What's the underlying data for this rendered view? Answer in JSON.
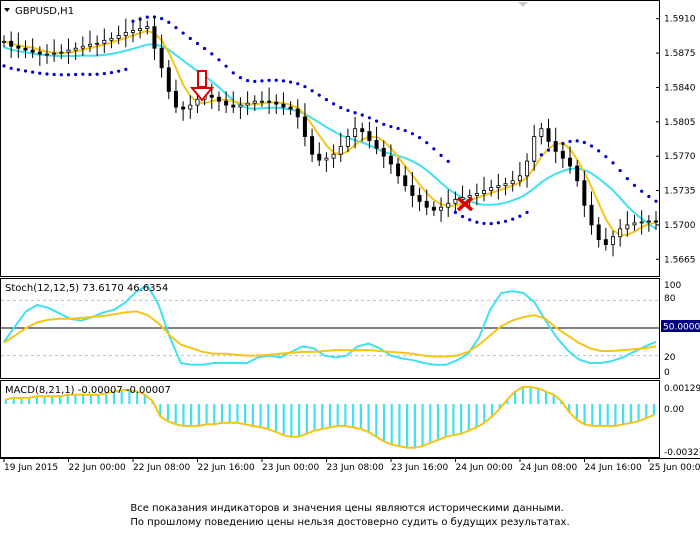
{
  "main_panel": {
    "title": "GBPUSD,H1",
    "price_ticks": [
      "1.5910",
      "1.5875",
      "1.5840",
      "1.5805",
      "1.5770",
      "1.5735",
      "1.5700",
      "1.5665"
    ]
  },
  "stoch_panel": {
    "label": "Stoch(12,12,5) 73.6170 46.6354",
    "ticks": [
      "100",
      "80",
      "20",
      "0"
    ],
    "level_badge": "50.0000"
  },
  "macd_panel": {
    "label": "MACD(8,21,1) -0.00007 -0.00007",
    "ticks": [
      "0.00129",
      "0.00",
      "-0.00327"
    ]
  },
  "time_axis": [
    "19 Jun 2015",
    "22 Jun 00:00",
    "22 Jun 08:00",
    "22 Jun 16:00",
    "23 Jun 00:00",
    "23 Jun 08:00",
    "23 Jun 16:00",
    "24 Jun 00:00",
    "24 Jun 08:00",
    "24 Jun 16:00",
    "25 Jun 00:00"
  ],
  "disclaimer": {
    "line1": "Все показания индикаторов и значения цены являются историческими данными.",
    "line2": "По прошлому поведению цены нельзя достоверно судить о будущих результатах."
  },
  "colors": {
    "bull_candle": "#ffffff",
    "bear_candle": "#000000",
    "ma_fast": "#f5c518",
    "ma_slow": "#40e0f0",
    "parabolic_sar": "#0000cc",
    "buy_arrow": "#dd0000",
    "exit_cross": "#dd0000"
  },
  "chart_data": [
    {
      "type": "candlestick",
      "symbol": "GBPUSD",
      "timeframe": "H1",
      "ylim": [
        1.565,
        1.5925
      ],
      "ticks": [
        1.591,
        1.5875,
        1.584,
        1.5805,
        1.577,
        1.5735,
        1.57,
        1.5665
      ],
      "x_labels": [
        "19 Jun 2015",
        "22 Jun 00:00",
        "22 Jun 08:00",
        "22 Jun 16:00",
        "23 Jun 00:00",
        "23 Jun 08:00",
        "23 Jun 16:00",
        "24 Jun 00:00",
        "24 Jun 08:00",
        "24 Jun 16:00",
        "25 Jun 00:00"
      ],
      "close_path": [
        1.5887,
        1.5882,
        1.588,
        1.5878,
        1.5876,
        1.5874,
        1.5874,
        1.5875,
        1.5876,
        1.5878,
        1.588,
        1.5882,
        1.5884,
        1.5885,
        1.5888,
        1.589,
        1.5893,
        1.5896,
        1.5898,
        1.59,
        1.5902,
        1.588,
        1.586,
        1.5836,
        1.582,
        1.5818,
        1.5822,
        1.5828,
        1.5832,
        1.583,
        1.5826,
        1.5822,
        1.582,
        1.5822,
        1.5824,
        1.5826,
        1.5826,
        1.5825,
        1.5823,
        1.582,
        1.5818,
        1.581,
        1.579,
        1.5772,
        1.5766,
        1.5768,
        1.5772,
        1.578,
        1.579,
        1.5798,
        1.5795,
        1.5786,
        1.5778,
        1.577,
        1.5762,
        1.575,
        1.574,
        1.573,
        1.5724,
        1.5718,
        1.5715,
        1.5718,
        1.5722,
        1.5726,
        1.5728,
        1.573,
        1.5732,
        1.5735,
        1.5738,
        1.574,
        1.5742,
        1.5745,
        1.575,
        1.5765,
        1.579,
        1.5798,
        1.5785,
        1.5775,
        1.5768,
        1.576,
        1.5745,
        1.572,
        1.57,
        1.5685,
        1.568,
        1.5688,
        1.5696,
        1.57,
        1.5702,
        1.5703,
        1.5704,
        1.5703
      ],
      "indicators": [
        "Moving Average (yellow)",
        "Moving Average (cyan)",
        "Parabolic SAR"
      ]
    },
    {
      "type": "line",
      "name": "Stochastic",
      "params": "12,12,5",
      "main_value": 73.617,
      "signal_value": 46.6354,
      "ylim": [
        0,
        100
      ],
      "ticks": [
        100,
        80,
        20,
        0
      ],
      "levels": [
        80,
        50,
        20
      ],
      "series": [
        {
          "color": "#40e0f0",
          "values": [
            35,
            52,
            68,
            75,
            72,
            66,
            60,
            58,
            62,
            67,
            70,
            78,
            90,
            96,
            75,
            40,
            12,
            10,
            10,
            12,
            12,
            12,
            12,
            18,
            20,
            18,
            24,
            30,
            28,
            20,
            18,
            20,
            30,
            33,
            28,
            20,
            17,
            15,
            12,
            10,
            10,
            15,
            22,
            40,
            70,
            88,
            90,
            88,
            78,
            58,
            40,
            26,
            16,
            12,
            12,
            14,
            18,
            24,
            30,
            35
          ]
        },
        {
          "color": "#f5c518",
          "values": [
            34,
            42,
            50,
            56,
            59,
            60,
            60,
            61,
            62,
            63,
            65,
            67,
            68,
            64,
            55,
            42,
            32,
            28,
            24,
            22,
            22,
            21,
            20,
            20,
            21,
            22,
            23,
            24,
            24,
            25,
            26,
            26,
            26,
            26,
            25,
            24,
            23,
            22,
            20,
            19,
            19,
            20,
            24,
            32,
            42,
            52,
            58,
            62,
            64,
            60,
            50,
            42,
            34,
            28,
            25,
            25,
            26,
            27,
            28,
            30
          ]
        }
      ]
    },
    {
      "type": "bar",
      "name": "MACD",
      "params": "8,21,1",
      "main_value": -7e-05,
      "signal_value": -7e-05,
      "ylim": [
        -0.00327,
        0.00129
      ],
      "ticks": [
        0.00129,
        0.0,
        -0.00327
      ],
      "values": [
        0.0003,
        0.0004,
        0.0004,
        0.0004,
        0.0005,
        0.0005,
        0.0005,
        0.0005,
        0.0006,
        0.0006,
        0.0006,
        0.0006,
        0.0006,
        0.0007,
        0.0008,
        0.0009,
        0.0009,
        0.0008,
        0.0006,
        0.0002,
        -0.0008,
        -0.0011,
        -0.0013,
        -0.0014,
        -0.0014,
        -0.0014,
        -0.0013,
        -0.0013,
        -0.0012,
        -0.0012,
        -0.0012,
        -0.0013,
        -0.0014,
        -0.0015,
        -0.0016,
        -0.0018,
        -0.002,
        -0.0021,
        -0.0021,
        -0.0019,
        -0.0017,
        -0.0016,
        -0.0015,
        -0.0014,
        -0.0014,
        -0.0015,
        -0.0016,
        -0.0018,
        -0.0021,
        -0.0024,
        -0.0026,
        -0.0027,
        -0.0028,
        -0.0028,
        -0.0027,
        -0.0025,
        -0.0023,
        -0.0021,
        -0.002,
        -0.0019,
        -0.0017,
        -0.0015,
        -0.0012,
        -0.0008,
        -0.0003,
        0.0003,
        0.0008,
        0.0011,
        0.0011,
        0.001,
        0.0008,
        0.0006,
        0.0002,
        -0.0005,
        -0.001,
        -0.0013,
        -0.0014,
        -0.0014,
        -0.0014,
        -0.0014,
        -0.0013,
        -0.0012,
        -0.0011,
        -0.0009,
        -0.0007
      ]
    }
  ]
}
